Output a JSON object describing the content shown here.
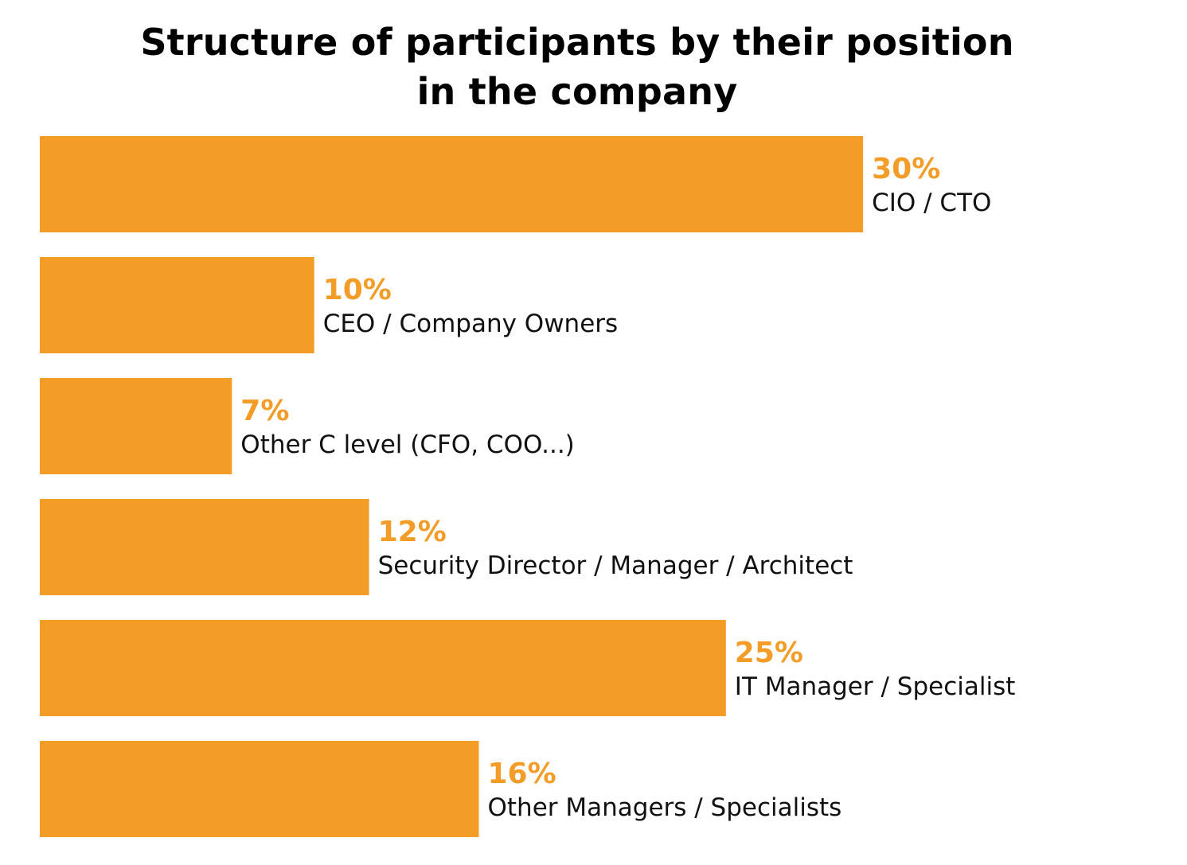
{
  "chart_data": {
    "type": "bar",
    "orientation": "horizontal",
    "title_lines": [
      "Structure of participants by their position",
      "in the company"
    ],
    "categories": [
      "CIO / CTO",
      "CEO / Company Owners",
      "Other C level (CFO, COO...)",
      "Security Director / Manager / Architect",
      "IT Manager / Specialist",
      "Other Managers / Specialists"
    ],
    "values": [
      30,
      10,
      7,
      12,
      25,
      16
    ],
    "value_labels": [
      "30%",
      "10%",
      "7%",
      "12%",
      "25%",
      "16%"
    ],
    "unit": "%",
    "grid": false,
    "legend": "none",
    "bar_color": "#F39C27",
    "value_label_color": "#F39C27",
    "label_color": "#111111"
  }
}
